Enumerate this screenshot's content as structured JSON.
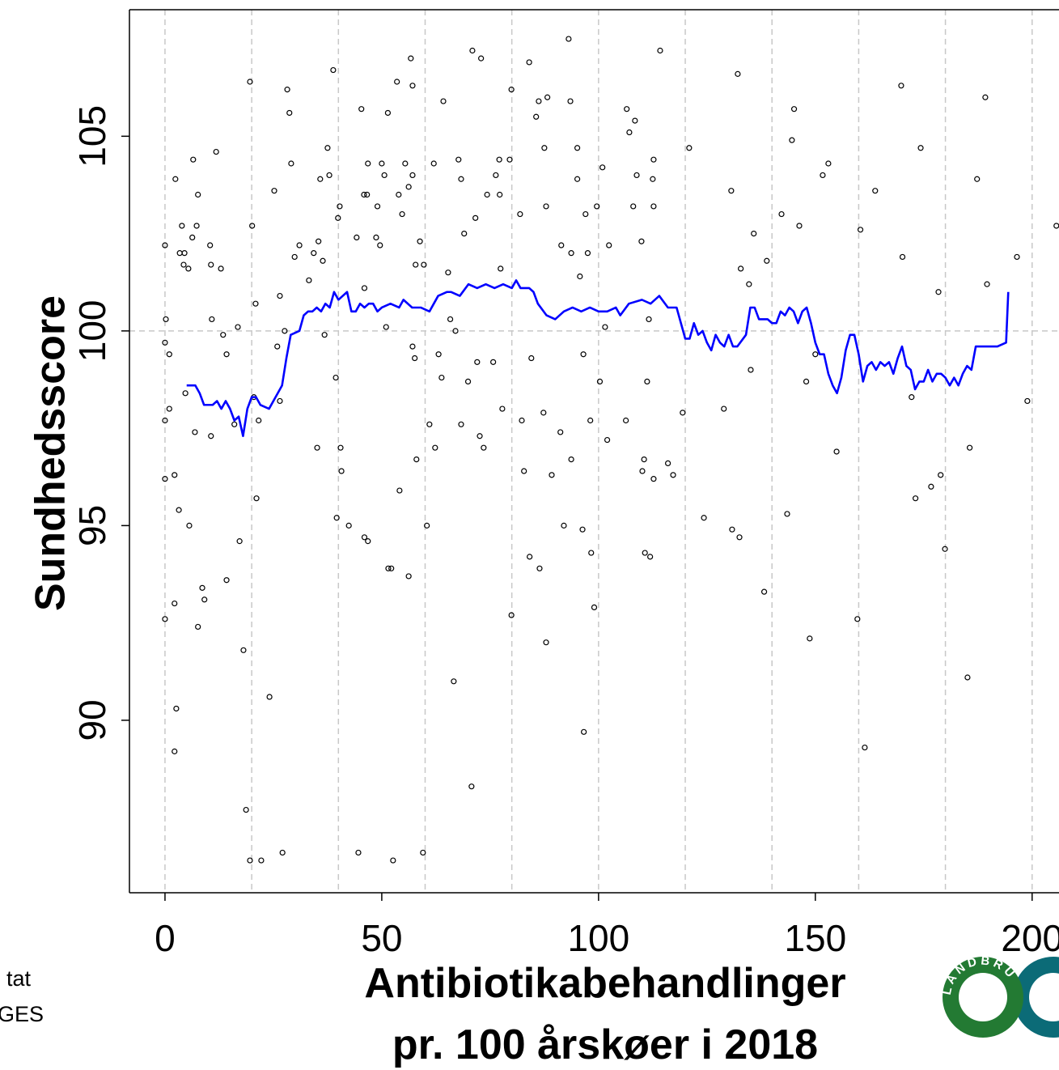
{
  "chart_data": {
    "type": "scatter",
    "y_label": "Sundhedsscore",
    "x_label": [
      "Antibiotikabehandlinger",
      "pr. 100 årskøer i 2018"
    ],
    "xlim": [
      -8.2,
      206.2
    ],
    "ylim": [
      85.57,
      108.25
    ],
    "xticks": [
      0,
      50,
      100,
      150,
      200
    ],
    "yticks": [
      90,
      95,
      100,
      105
    ],
    "xgrid": [
      0,
      20,
      40,
      60,
      80,
      100,
      120,
      140,
      160,
      180,
      200
    ],
    "yref": 100,
    "series": [
      {
        "type": "scatter",
        "color": "#000000",
        "x": [
          0,
          0,
          0,
          0,
          0.2,
          0,
          1,
          1,
          2.4,
          2.2,
          2.2,
          2.6,
          2.2,
          3.2,
          3.9,
          3.4,
          4.5,
          4.3,
          5.4,
          4.7,
          5.6,
          6.5,
          6.3,
          7.3,
          7.6,
          6.9,
          7.6,
          8.6,
          9.1,
          10.4,
          10.6,
          10.8,
          10.6,
          11.8,
          12.9,
          13.4,
          14.2,
          14.2,
          16,
          16.8,
          17.2,
          18.1,
          18.7,
          19.6,
          19.6,
          20.1,
          20.5,
          20.9,
          21.1,
          21.6,
          22.2,
          24.1,
          25.2,
          25.9,
          26.5,
          27.1,
          26.5,
          27.6,
          28.2,
          28.7,
          29.1,
          29.9,
          31,
          33.2,
          34.3,
          35.4,
          35.1,
          35.8,
          36.8,
          36.4,
          37.5,
          37.9,
          38.8,
          39.4,
          39.6,
          39.9,
          40.3,
          40.5,
          40.7,
          42.4,
          44.2,
          44.6,
          45.3,
          45.9,
          46.6,
          46,
          46.8,
          46.8,
          46,
          48.7,
          49,
          49.6,
          50,
          50.6,
          51,
          51.4,
          51.5,
          52.2,
          52.6,
          53.5,
          53.9,
          54.1,
          54.7,
          55.4,
          56.2,
          56.2,
          56.7,
          57.1,
          57.1,
          57.1,
          57.6,
          58,
          57.8,
          58.8,
          59.5,
          59.7,
          60.4,
          61,
          62,
          62.3,
          63.1,
          63.8,
          64.2,
          65.3,
          65.8,
          66.6,
          67,
          67.7,
          68.3,
          68.3,
          69,
          69.9,
          70.7,
          70.9,
          71.6,
          72,
          72.6,
          72.9,
          73.5,
          74.3,
          75.7,
          76.3,
          77.1,
          77.4,
          77.8,
          77.2,
          79.5,
          79.9,
          79.9,
          81.9,
          82.3,
          82.8,
          84,
          84.1,
          84.5,
          85.6,
          86.2,
          86.4,
          87.3,
          87.5,
          87.9,
          87.9,
          88.2,
          89.2,
          91.4,
          91.2,
          92,
          93.1,
          93.7,
          93.7,
          93.5,
          95.1,
          95.1,
          95.7,
          96.3,
          96.5,
          96.6,
          97,
          97.5,
          98.1,
          98.3,
          99,
          99.6,
          100.3,
          100.9,
          101.5,
          102,
          102.4,
          106.3,
          106.5,
          107.1,
          108.4,
          108.8,
          108,
          109.9,
          110.5,
          110.1,
          110.7,
          111.2,
          111.6,
          111.9,
          112.5,
          112.7,
          112.7,
          112.7,
          114.2,
          116,
          117.2,
          119.4,
          120.9,
          124.3,
          128.9,
          130.6,
          130.8,
          132.1,
          132.5,
          132.8,
          134.7,
          135.1,
          135.8,
          138.2,
          138.8,
          142.2,
          143.5,
          144.6,
          145.1,
          146.3,
          147.9,
          148.7,
          150,
          151.7,
          153,
          154.9,
          159.7,
          160.4,
          161.4,
          163.8,
          169.8,
          170.1,
          172.2,
          173.1,
          174.3,
          176.7,
          178.4,
          178.9,
          179.9,
          185.1,
          185.6,
          187.3,
          189.2,
          189.6,
          196.5,
          198.9,
          205.6
        ],
        "values": [
          97.7,
          96.2,
          92.6,
          102.2,
          100.3,
          99.7,
          99.4,
          98,
          103.9,
          96.3,
          93,
          90.3,
          89.2,
          95.4,
          102.7,
          102,
          102,
          101.7,
          101.6,
          98.4,
          95,
          104.4,
          102.4,
          102.7,
          103.5,
          97.4,
          92.4,
          93.4,
          93.1,
          102.2,
          101.7,
          100.3,
          97.3,
          104.6,
          101.6,
          99.9,
          99.4,
          93.6,
          97.6,
          100.1,
          94.6,
          91.8,
          87.7,
          86.4,
          106.4,
          102.7,
          98.3,
          100.7,
          95.7,
          97.7,
          86.4,
          90.6,
          103.6,
          99.6,
          98.2,
          86.6,
          100.9,
          100,
          106.2,
          105.6,
          104.3,
          101.9,
          102.2,
          101.3,
          102,
          102.3,
          97,
          103.9,
          99.9,
          101.8,
          104.7,
          104,
          106.7,
          98.8,
          95.2,
          102.9,
          103.2,
          97,
          96.4,
          95,
          102.4,
          86.6,
          105.7,
          103.5,
          103.5,
          94.7,
          94.6,
          104.3,
          101.1,
          102.4,
          103.2,
          102.2,
          104.3,
          104,
          100.1,
          105.6,
          93.9,
          93.9,
          86.4,
          106.4,
          103.5,
          95.9,
          103,
          104.3,
          103.7,
          93.7,
          107,
          106.3,
          104,
          99.6,
          99.3,
          96.7,
          101.7,
          102.3,
          86.6,
          101.7,
          95,
          97.6,
          104.3,
          97,
          99.4,
          98.8,
          105.9,
          101.5,
          100.3,
          91,
          100,
          104.4,
          103.9,
          97.6,
          102.5,
          98.7,
          88.3,
          107.2,
          102.9,
          99.2,
          97.3,
          107,
          97,
          103.5,
          99.2,
          104,
          104.4,
          101.6,
          98,
          103.5,
          104.4,
          106.2,
          92.7,
          103,
          97.7,
          96.4,
          106.9,
          94.2,
          99.3,
          105.5,
          105.9,
          93.9,
          97.9,
          104.7,
          103.2,
          92,
          106,
          96.3,
          102.2,
          97.4,
          95,
          107.5,
          96.7,
          102,
          105.9,
          104.7,
          103.9,
          101.4,
          94.9,
          99.4,
          89.7,
          103,
          102,
          97.7,
          94.3,
          92.9,
          103.2,
          98.7,
          104.2,
          100.1,
          97.2,
          102.2,
          97.7,
          105.7,
          105.1,
          105.4,
          104,
          103.2,
          102.3,
          96.7,
          96.4,
          94.3,
          98.7,
          100.3,
          94.2,
          103.9,
          103.2,
          96.2,
          104.4,
          107.2,
          96.6,
          96.3,
          97.9,
          104.7,
          95.2,
          98,
          103.6,
          94.9,
          106.6,
          94.7,
          101.6,
          101.2,
          99,
          102.5,
          93.3,
          101.8,
          103,
          95.3,
          104.9,
          105.7,
          102.7,
          98.7,
          92.1,
          99.4,
          104,
          104.3,
          96.9,
          92.6,
          102.6,
          89.3,
          103.6,
          106.3,
          101.9,
          98.3,
          95.7,
          104.7,
          96,
          101,
          96.3,
          94.4,
          91.1,
          97,
          103.9,
          106,
          101.2,
          101.9,
          98.2,
          102.7
        ]
      },
      {
        "type": "line",
        "color": "#0000ff",
        "x": [
          5,
          7,
          8,
          9,
          11,
          12,
          13,
          14,
          15,
          16,
          17,
          18,
          19,
          20,
          21,
          22,
          24,
          26,
          27,
          28,
          29,
          31,
          32,
          33,
          34,
          35,
          36,
          37,
          38,
          39,
          40,
          41,
          42,
          43,
          44,
          45,
          46,
          47,
          48,
          49,
          50,
          52,
          54,
          55,
          57,
          59,
          61,
          62,
          63,
          65,
          66,
          68,
          70,
          72,
          74,
          76,
          78,
          80,
          81,
          82,
          84,
          85,
          86,
          88,
          90,
          92,
          94,
          96,
          98,
          100,
          102,
          104,
          105,
          107,
          110,
          112,
          114,
          116,
          118,
          119,
          120,
          121,
          122,
          123,
          124,
          125,
          126,
          127,
          128,
          129,
          130,
          131,
          132,
          134,
          135,
          136,
          137,
          138,
          139,
          140,
          141,
          142,
          143,
          144,
          145,
          146,
          147,
          148,
          149,
          150,
          151,
          152,
          153,
          154,
          155,
          156,
          157,
          158,
          159,
          160,
          161,
          162,
          163,
          164,
          165,
          166,
          167,
          168,
          169,
          170,
          171,
          172,
          173,
          174,
          175,
          176,
          177,
          178,
          179,
          180,
          181,
          182,
          183,
          184,
          185,
          186,
          187,
          188,
          190,
          192,
          194,
          194.5
        ],
        "values": [
          98.6,
          98.6,
          98.4,
          98.1,
          98.1,
          98.2,
          98.0,
          98.2,
          98.0,
          97.7,
          97.8,
          97.3,
          98.0,
          98.3,
          98.3,
          98.1,
          98.0,
          98.4,
          98.6,
          99.3,
          99.9,
          100.0,
          100.4,
          100.5,
          100.5,
          100.6,
          100.5,
          100.7,
          100.6,
          101.0,
          100.8,
          100.9,
          101.0,
          100.5,
          100.5,
          100.7,
          100.6,
          100.7,
          100.7,
          100.5,
          100.6,
          100.7,
          100.6,
          100.8,
          100.6,
          100.6,
          100.5,
          100.7,
          100.9,
          101.0,
          101.0,
          100.9,
          101.2,
          101.1,
          101.2,
          101.1,
          101.2,
          101.1,
          101.3,
          101.1,
          101.1,
          101.0,
          100.7,
          100.4,
          100.3,
          100.5,
          100.6,
          100.5,
          100.6,
          100.5,
          100.5,
          100.6,
          100.4,
          100.7,
          100.8,
          100.7,
          100.9,
          100.6,
          100.6,
          100.2,
          99.8,
          99.8,
          100.2,
          99.9,
          100.0,
          99.7,
          99.5,
          99.9,
          99.7,
          99.6,
          99.9,
          99.6,
          99.6,
          99.9,
          100.6,
          100.6,
          100.3,
          100.3,
          100.3,
          100.2,
          100.2,
          100.5,
          100.4,
          100.6,
          100.5,
          100.2,
          100.5,
          100.6,
          100.2,
          99.7,
          99.4,
          99.4,
          98.9,
          98.6,
          98.4,
          98.8,
          99.5,
          99.9,
          99.9,
          99.4,
          98.7,
          99.1,
          99.2,
          99.0,
          99.2,
          99.1,
          99.2,
          98.9,
          99.3,
          99.6,
          99.1,
          99.0,
          98.5,
          98.7,
          98.7,
          99.0,
          98.7,
          98.9,
          98.9,
          98.8,
          98.6,
          98.8,
          98.6,
          98.9,
          99.1,
          99.0,
          99.6,
          99.6,
          99.6,
          99.6,
          99.7,
          101.0
        ]
      }
    ]
  },
  "footer": {
    "text": [
      "tat",
      "GES"
    ],
    "logo_text": "LANDBRU"
  }
}
